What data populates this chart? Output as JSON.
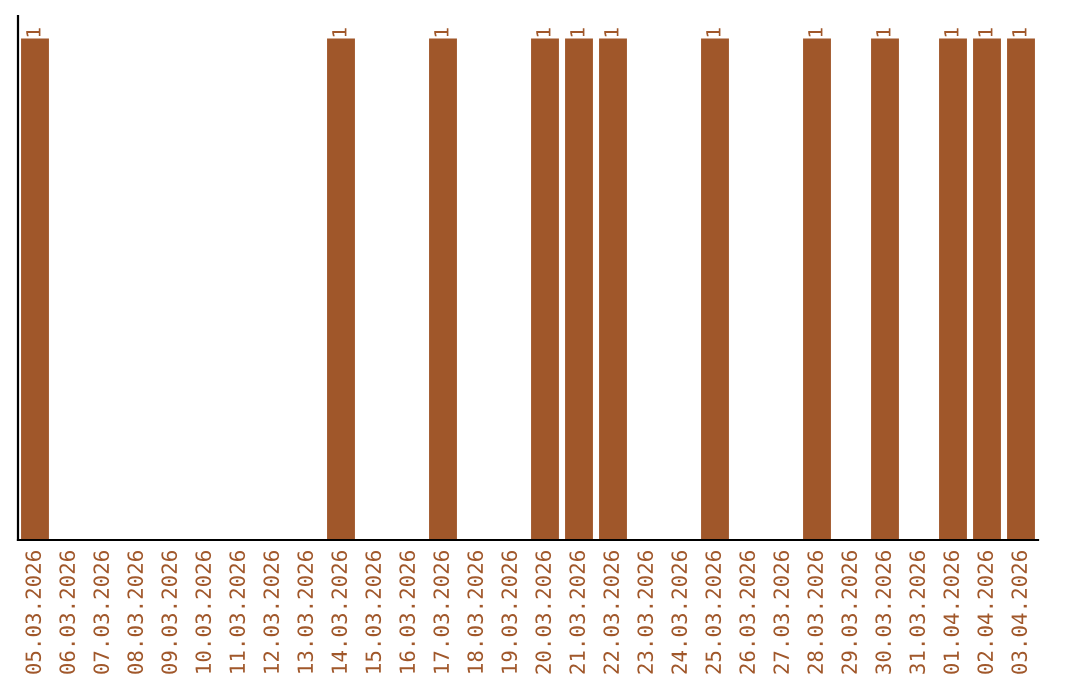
{
  "chart_data": {
    "type": "bar",
    "categories": [
      "05.03.2026",
      "06.03.2026",
      "07.03.2026",
      "08.03.2026",
      "09.03.2026",
      "10.03.2026",
      "11.03.2026",
      "12.03.2026",
      "13.03.2026",
      "14.03.2026",
      "15.03.2026",
      "16.03.2026",
      "17.03.2026",
      "18.03.2026",
      "19.03.2026",
      "20.03.2026",
      "21.03.2026",
      "22.03.2026",
      "23.03.2026",
      "24.03.2026",
      "25.03.2026",
      "26.03.2026",
      "27.03.2026",
      "28.03.2026",
      "29.03.2026",
      "30.03.2026",
      "31.03.2026",
      "01.04.2026",
      "02.04.2026",
      "03.04.2026"
    ],
    "values": [
      1,
      null,
      null,
      null,
      null,
      null,
      null,
      null,
      null,
      1,
      null,
      null,
      1,
      null,
      null,
      1,
      1,
      1,
      null,
      null,
      1,
      null,
      null,
      1,
      null,
      1,
      null,
      1,
      1,
      1
    ],
    "color": "#a0572a",
    "data_labels": true,
    "tick_labels": "x",
    "grid": false,
    "legend": false
  }
}
